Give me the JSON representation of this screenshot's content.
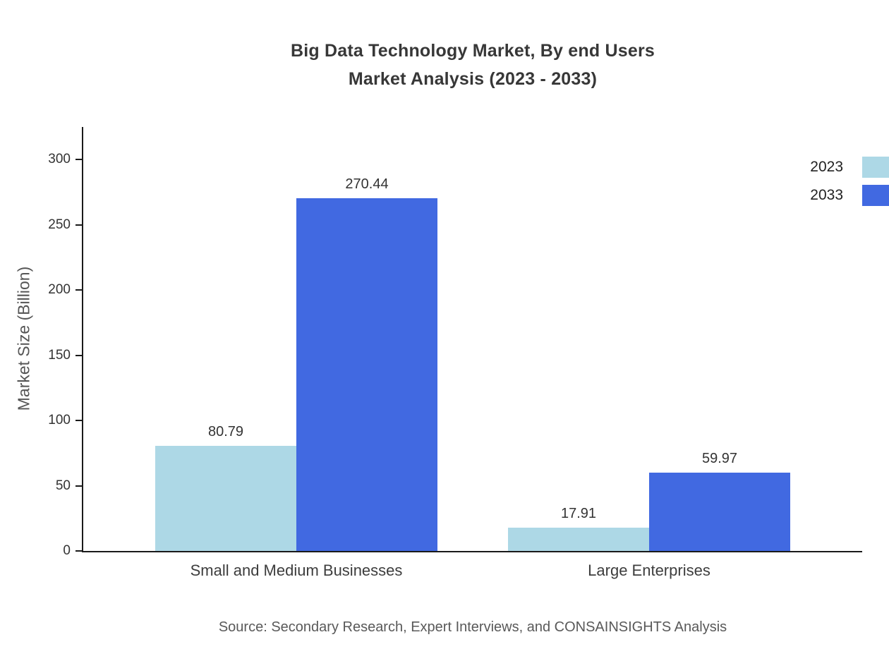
{
  "chart_data": {
    "type": "bar",
    "title": "Big Data Technology Market, By end Users Market Analysis (2023 - 2033)",
    "title_lines": [
      "Big Data Technology Market, By end Users",
      "Market Analysis (2023 - 2033)"
    ],
    "categories": [
      "Small and Medium Businesses",
      "Large Enterprises"
    ],
    "series": [
      {
        "name": "2023",
        "color": "#add8e6",
        "values": [
          80.79,
          17.91
        ]
      },
      {
        "name": "2033",
        "color": "#4169e1",
        "values": [
          270.44,
          59.97
        ]
      }
    ],
    "value_labels": [
      [
        "80.79",
        "17.91"
      ],
      [
        "270.44",
        "59.97"
      ]
    ],
    "xlabel": "",
    "ylabel": "Market Size (Billion)",
    "ylim": [
      0,
      300
    ],
    "yticks": [
      0,
      50,
      100,
      150,
      200,
      250,
      300
    ],
    "grid": false,
    "legend_position": "top-right",
    "source": "Source: Secondary Research, Expert Interviews, and CONSAINSIGHTS Analysis"
  }
}
